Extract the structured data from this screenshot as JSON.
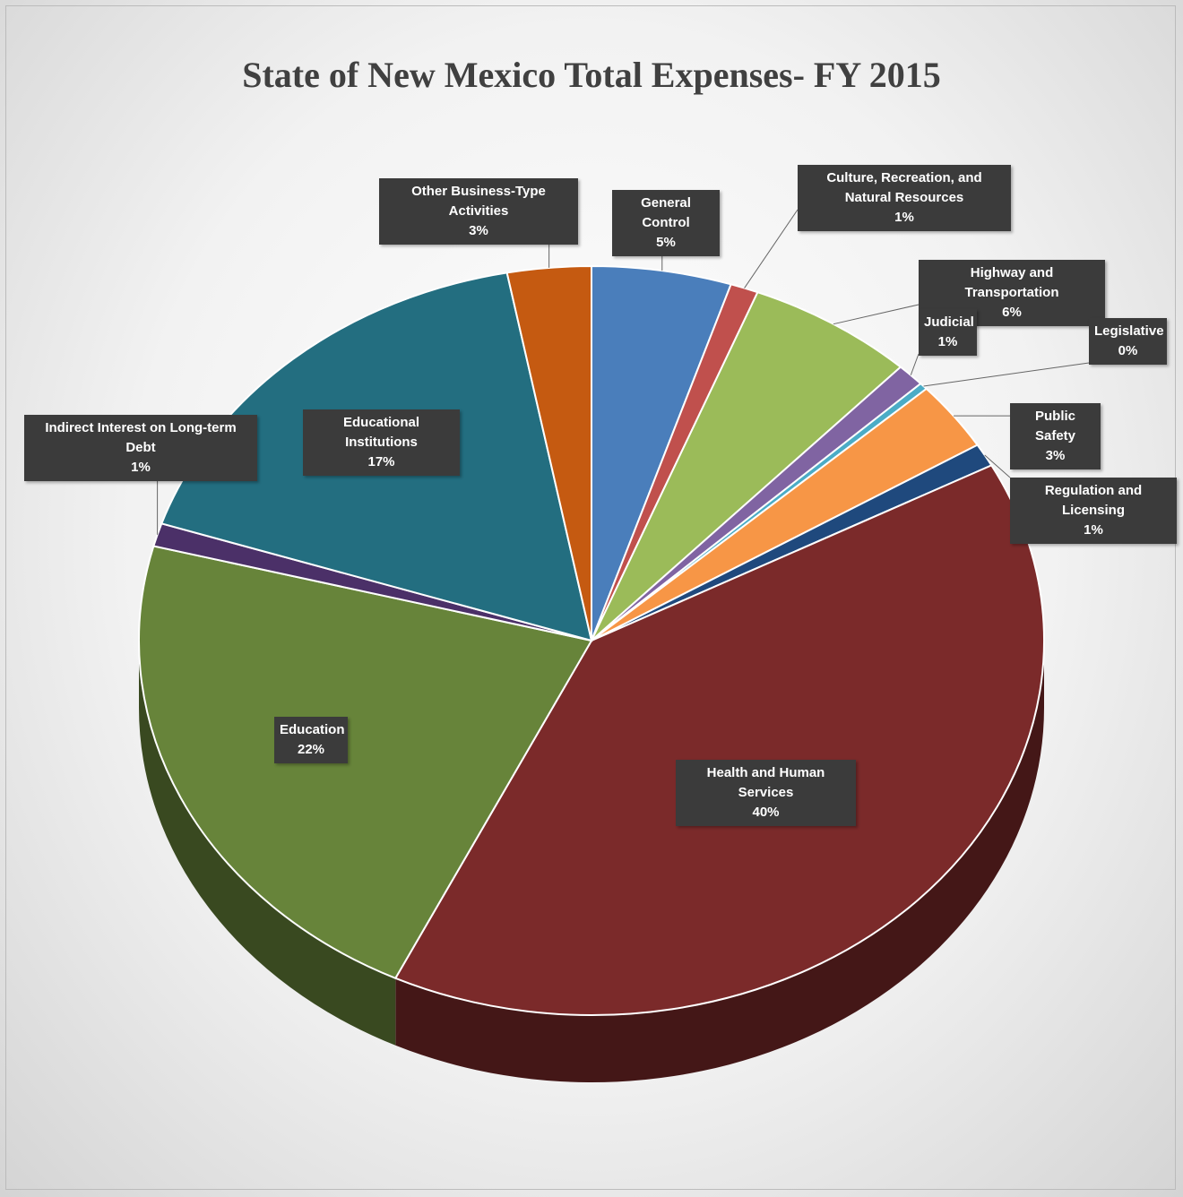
{
  "chart_data": {
    "type": "pie",
    "title": "State of New Mexico Total Expenses- FY 2015",
    "categories": [
      "General Control",
      "Culture, Recreation, and Natural Resources",
      "Highway and Transportation",
      "Judicial",
      "Legislative",
      "Public Safety",
      "Regulation and Licensing",
      "Health and Human Services",
      "Education",
      "Indirect Interest on Long-term Debt",
      "Educational Institutions",
      "Other Business-Type Activities"
    ],
    "values": [
      5,
      1,
      6,
      1,
      0.3,
      3,
      1,
      40,
      22,
      1,
      17,
      3
    ],
    "value_labels": [
      "5%",
      "1%",
      "6%",
      "1%",
      "0%",
      "3%",
      "1%",
      "40%",
      "22%",
      "1%",
      "17%",
      "3%"
    ],
    "colors": [
      "#4a7ebb",
      "#c0504d",
      "#9bbb59",
      "#8064a2",
      "#4bacc6",
      "#f79646",
      "#1f497d",
      "#7b2a2a",
      "#67843a",
      "#4b3068",
      "#236e80",
      "#c55a11"
    ]
  }
}
